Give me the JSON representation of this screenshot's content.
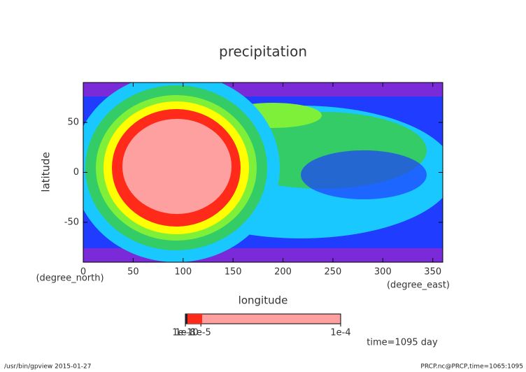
{
  "chart_data": {
    "type": "contour",
    "title": "precipitation",
    "xlabel": "longitude",
    "xunits": "(degree_east)",
    "ylabel": "latitude",
    "yunits": "(degree_north)",
    "xlim": [
      0,
      360
    ],
    "xticks": [
      0,
      50,
      100,
      150,
      200,
      250,
      300,
      350
    ],
    "ylim": [
      -90,
      90
    ],
    "yticks": [
      -50,
      0,
      50
    ],
    "colorbar": {
      "clim": [
        0,
        0.0001
      ],
      "ticks": [
        {
          "value": 1e-10,
          "label": "1e-10"
        },
        {
          "value": 1e-08,
          "label": "1e-8"
        },
        {
          "value": 1e-05,
          "label": "1e-5"
        },
        {
          "value": 0.0001,
          "label": "1e-4"
        }
      ]
    },
    "annotation": "time=1095 day",
    "footer_left": "/usr/bin/gpview  2015-01-27",
    "footer_right": "PRCP.nc@PRCP,time=1065:1095"
  }
}
